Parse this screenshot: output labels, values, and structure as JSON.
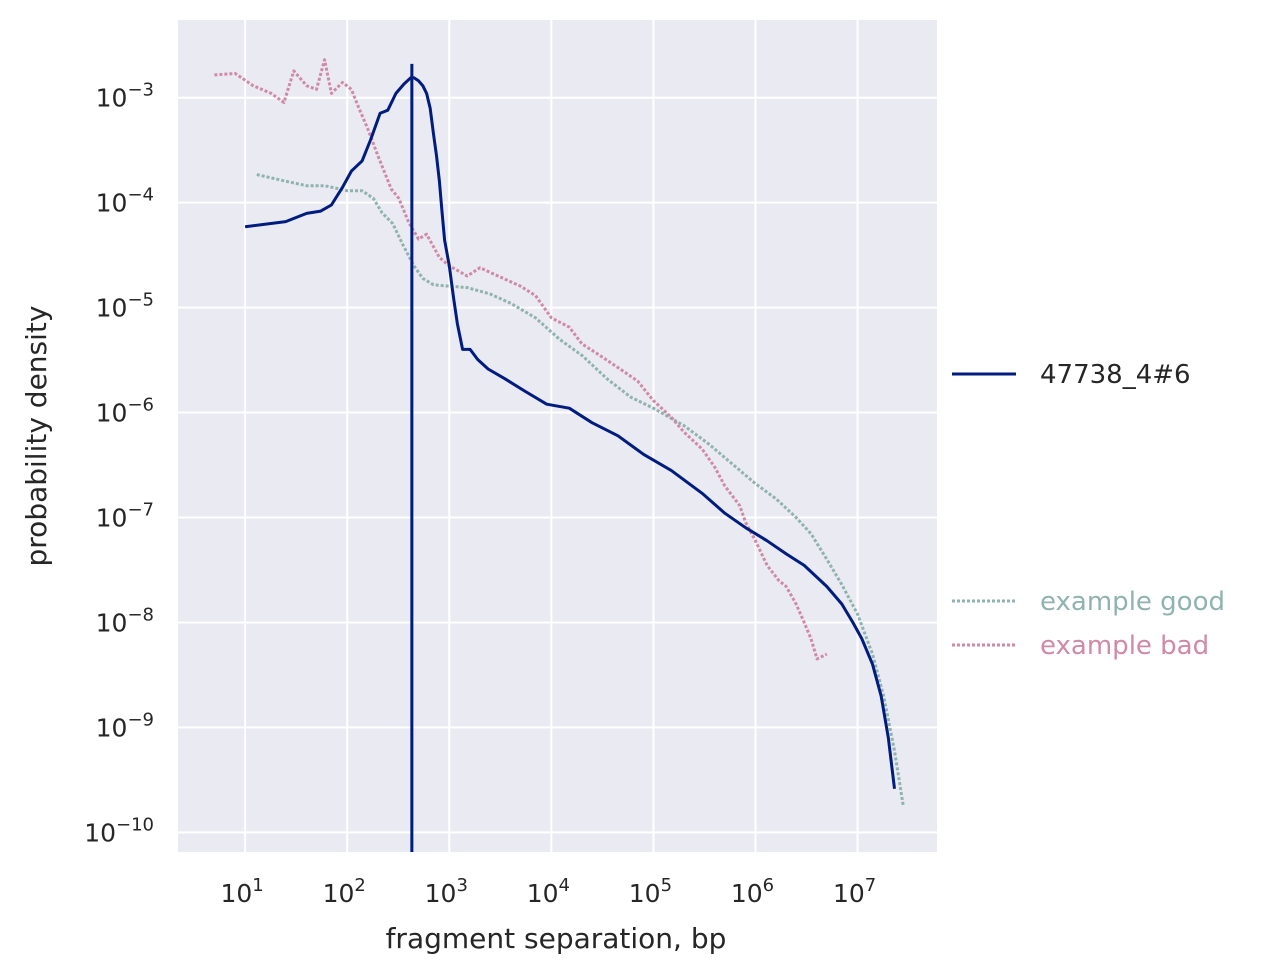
{
  "chart_data": {
    "type": "line",
    "xscale": "log",
    "yscale": "log",
    "xlabel": "fragment separation, bp",
    "ylabel": "probability density",
    "xlim": [
      2.2,
      60000000
    ],
    "ylim": [
      6.5e-11,
      0.0055
    ],
    "xticks": [
      {
        "base": "10",
        "exp": "1",
        "value": 10
      },
      {
        "base": "10",
        "exp": "2",
        "value": 100
      },
      {
        "base": "10",
        "exp": "3",
        "value": 1000
      },
      {
        "base": "10",
        "exp": "4",
        "value": 10000
      },
      {
        "base": "10",
        "exp": "5",
        "value": 100000
      },
      {
        "base": "10",
        "exp": "6",
        "value": 1000000
      },
      {
        "base": "10",
        "exp": "7",
        "value": 10000000
      }
    ],
    "yticks": [
      {
        "base": "10",
        "exp": "−3",
        "value": 0.001
      },
      {
        "base": "10",
        "exp": "−4",
        "value": 0.0001
      },
      {
        "base": "10",
        "exp": "−5",
        "value": 1e-05
      },
      {
        "base": "10",
        "exp": "−6",
        "value": 1e-06
      },
      {
        "base": "10",
        "exp": "−7",
        "value": 1e-07
      },
      {
        "base": "10",
        "exp": "−8",
        "value": 1e-08
      },
      {
        "base": "10",
        "exp": "−9",
        "value": 1e-09
      },
      {
        "base": "10",
        "exp": "−10",
        "value": 1e-10
      }
    ],
    "grid": true,
    "legend_placement": "right, outside plot",
    "series": [
      {
        "name": "47738_4#6",
        "color": "#001c7f",
        "style": "solid",
        "legend_group": "top",
        "points": [
          [
            10,
            5.9e-05
          ],
          [
            25,
            6.6e-05
          ],
          [
            40,
            7.9e-05
          ],
          [
            55,
            8.3e-05
          ],
          [
            70,
            9.5e-05
          ],
          [
            90,
            0.00014
          ],
          [
            110,
            0.0002
          ],
          [
            140,
            0.00025
          ],
          [
            170,
            0.0004
          ],
          [
            210,
            0.00071
          ],
          [
            250,
            0.00076
          ],
          [
            300,
            0.0011
          ],
          [
            360,
            0.00135
          ],
          [
            420,
            0.00155
          ],
          [
            450,
            0.00155
          ],
          [
            500,
            0.00145
          ],
          [
            550,
            0.0013
          ],
          [
            600,
            0.0011
          ],
          [
            650,
            0.00079
          ],
          [
            700,
            0.00045
          ],
          [
            750,
            0.00028
          ],
          [
            800,
            0.00016
          ],
          [
            850,
            8e-05
          ],
          [
            900,
            4.4e-05
          ],
          [
            1000,
            2.5e-05
          ],
          [
            1100,
            1.25e-05
          ],
          [
            1200,
            7e-06
          ],
          [
            1350,
            4e-06
          ],
          [
            1600,
            4e-06
          ],
          [
            1900,
            3.2e-06
          ],
          [
            2400,
            2.6e-06
          ],
          [
            3500,
            2.1e-06
          ],
          [
            5500,
            1.6e-06
          ],
          [
            9000,
            1.2e-06
          ],
          [
            15000,
            1.1e-06
          ],
          [
            25000,
            8e-07
          ],
          [
            45000,
            6e-07
          ],
          [
            80000,
            4e-07
          ],
          [
            150000,
            2.8e-07
          ],
          [
            300000,
            1.7e-07
          ],
          [
            500000,
            1.1e-07
          ],
          [
            800000,
            8e-08
          ],
          [
            1300000,
            6e-08
          ],
          [
            2000000,
            4.5e-08
          ],
          [
            3000000,
            3.5e-08
          ],
          [
            5000000,
            2.2e-08
          ],
          [
            7000000,
            1.5e-08
          ],
          [
            9000000,
            1e-08
          ],
          [
            11000000,
            7e-09
          ],
          [
            14000000,
            4e-09
          ],
          [
            17000000,
            2e-09
          ],
          [
            20000000,
            8e-10
          ],
          [
            23000000,
            2.6e-10
          ]
        ]
      },
      {
        "name": "example good",
        "color": "#8fb3ae",
        "style": "dotted",
        "legend_group": "bottom",
        "points": [
          [
            13,
            0.000185
          ],
          [
            25,
            0.00016
          ],
          [
            40,
            0.000145
          ],
          [
            60,
            0.000145
          ],
          [
            100,
            0.00013
          ],
          [
            140,
            0.00013
          ],
          [
            180,
            0.00011
          ],
          [
            220,
            8e-05
          ],
          [
            280,
            6.3e-05
          ],
          [
            350,
            4e-05
          ],
          [
            450,
            2.5e-05
          ],
          [
            550,
            1.9e-05
          ],
          [
            700,
            1.65e-05
          ],
          [
            1000,
            1.6e-05
          ],
          [
            1500,
            1.55e-05
          ],
          [
            2500,
            1.35e-05
          ],
          [
            4000,
            1.1e-05
          ],
          [
            7000,
            8e-06
          ],
          [
            12000,
            5e-06
          ],
          [
            20000,
            3.5e-06
          ],
          [
            35000,
            2.1e-06
          ],
          [
            60000,
            1.4e-06
          ],
          [
            100000,
            1.1e-06
          ],
          [
            200000,
            7.5e-07
          ],
          [
            350000,
            5e-07
          ],
          [
            600000,
            3.2e-07
          ],
          [
            1000000,
            2.1e-07
          ],
          [
            1600000,
            1.5e-07
          ],
          [
            2500000,
            1e-07
          ],
          [
            3500000,
            7e-08
          ],
          [
            5000000,
            4e-08
          ],
          [
            7000000,
            2.3e-08
          ],
          [
            10000000,
            1.2e-08
          ],
          [
            14000000,
            5e-09
          ],
          [
            18000000,
            2e-09
          ],
          [
            23000000,
            6e-10
          ],
          [
            28000000,
            1.8e-10
          ]
        ]
      },
      {
        "name": "example bad",
        "color": "#d08aa6",
        "style": "dotted",
        "legend_group": "bottom",
        "points": [
          [
            5,
            0.00165
          ],
          [
            8,
            0.0017
          ],
          [
            12,
            0.0013
          ],
          [
            18,
            0.0011
          ],
          [
            24,
            0.0009
          ],
          [
            30,
            0.0018
          ],
          [
            40,
            0.0013
          ],
          [
            50,
            0.0012
          ],
          [
            60,
            0.0023
          ],
          [
            70,
            0.0011
          ],
          [
            90,
            0.0014
          ],
          [
            110,
            0.0012
          ],
          [
            130,
            0.0008
          ],
          [
            160,
            0.0005
          ],
          [
            200,
            0.00028
          ],
          [
            240,
            0.00018
          ],
          [
            270,
            0.000135
          ],
          [
            320,
            0.00011
          ],
          [
            400,
            6.5e-05
          ],
          [
            500,
            4.5e-05
          ],
          [
            600,
            5e-05
          ],
          [
            800,
            3e-05
          ],
          [
            1000,
            2.5e-05
          ],
          [
            1500,
            2e-05
          ],
          [
            2000,
            2.4e-05
          ],
          [
            3000,
            2e-05
          ],
          [
            5000,
            1.6e-05
          ],
          [
            7000,
            1.3e-05
          ],
          [
            10000,
            8e-06
          ],
          [
            15000,
            6.5e-06
          ],
          [
            20000,
            4.5e-06
          ],
          [
            30000,
            3.5e-06
          ],
          [
            50000,
            2.5e-06
          ],
          [
            70000,
            2e-06
          ],
          [
            100000,
            1.3e-06
          ],
          [
            150000,
            9e-07
          ],
          [
            200000,
            6.5e-07
          ],
          [
            300000,
            4.5e-07
          ],
          [
            400000,
            3e-07
          ],
          [
            500000,
            2e-07
          ],
          [
            700000,
            1.3e-07
          ],
          [
            800000,
            9e-08
          ],
          [
            1000000,
            6e-08
          ],
          [
            1300000,
            3.5e-08
          ],
          [
            1700000,
            2.5e-08
          ],
          [
            2000000,
            2.2e-08
          ],
          [
            2500000,
            1.5e-08
          ],
          [
            3000000,
            1e-08
          ],
          [
            3500000,
            7e-09
          ],
          [
            4000000,
            4.5e-09
          ],
          [
            5000000,
            5e-09
          ]
        ]
      }
    ],
    "vertical_lines": [
      {
        "x": 430,
        "color": "#001c7f",
        "series": "47738_4#6"
      }
    ]
  }
}
